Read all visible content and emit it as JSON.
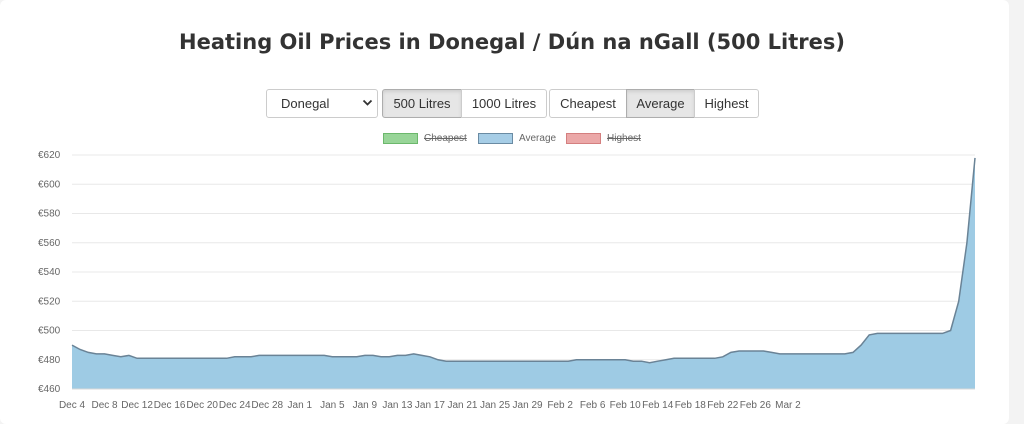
{
  "header": {
    "title": "Heating Oil Prices in Donegal / Dún na nGall (500 Litres)"
  },
  "controls": {
    "county_select": {
      "value": "Donegal"
    },
    "volume_buttons": [
      {
        "label": "500 Litres",
        "active": true
      },
      {
        "label": "1000 Litres",
        "active": false
      }
    ],
    "type_buttons": [
      {
        "label": "Cheapest",
        "active": false
      },
      {
        "label": "Average",
        "active": true
      },
      {
        "label": "Highest",
        "active": false
      }
    ]
  },
  "legend": [
    {
      "label": "Cheapest",
      "color": "#98d598",
      "border": "#6cb86c",
      "hidden": true
    },
    {
      "label": "Average",
      "color": "#a6cde6",
      "border": "#6a8ba3",
      "hidden": false
    },
    {
      "label": "Highest",
      "color": "#eba8a8",
      "border": "#d47f7f",
      "hidden": true
    }
  ],
  "colors": {
    "fill": "#9ecbe4",
    "line": "#6a8396",
    "grid": "#e8e8e8"
  },
  "chart_data": {
    "type": "area",
    "title": "Heating Oil Prices in Donegal / Dún na nGall (500 Litres)",
    "ylim": [
      460,
      620
    ],
    "y_ticks": [
      460,
      480,
      500,
      520,
      540,
      560,
      580,
      600,
      620
    ],
    "y_tick_labels": [
      "€460",
      "€480",
      "€500",
      "€520",
      "€540",
      "€560",
      "€580",
      "€600",
      "€620"
    ],
    "x_tick_labels": [
      "Dec 4",
      "Dec 8",
      "Dec 12",
      "Dec 16",
      "Dec 20",
      "Dec 24",
      "Dec 28",
      "Jan 1",
      "Jan 5",
      "Jan 9",
      "Jan 13",
      "Jan 17",
      "Jan 21",
      "Jan 25",
      "Jan 29",
      "Feb 2",
      "Feb 6",
      "Feb 10",
      "Feb 14",
      "Feb 18",
      "Feb 22",
      "Feb 26",
      "Mar 2"
    ],
    "x_start": "Dec 4",
    "x_end": "Mar 3",
    "series": [
      {
        "name": "Average",
        "values": [
          490,
          487,
          485,
          484,
          484,
          483,
          482,
          483,
          481,
          481,
          481,
          481,
          481,
          481,
          481,
          481,
          481,
          481,
          481,
          481,
          482,
          482,
          482,
          483,
          483,
          483,
          483,
          483,
          483,
          483,
          483,
          483,
          482,
          482,
          482,
          482,
          483,
          483,
          482,
          482,
          483,
          483,
          484,
          483,
          482,
          480,
          479,
          479,
          479,
          479,
          479,
          479,
          479,
          479,
          479,
          479,
          479,
          479,
          479,
          479,
          479,
          479,
          480,
          480,
          480,
          480,
          480,
          480,
          480,
          479,
          479,
          478,
          479,
          480,
          481,
          481,
          481,
          481,
          481,
          481,
          482,
          485,
          486,
          486,
          486,
          486,
          485,
          484,
          484,
          484,
          484,
          484,
          484,
          484,
          484,
          484,
          485,
          490,
          497,
          498,
          498,
          498,
          498,
          498,
          498,
          498,
          498,
          498,
          500,
          520,
          560,
          618
        ]
      }
    ]
  }
}
